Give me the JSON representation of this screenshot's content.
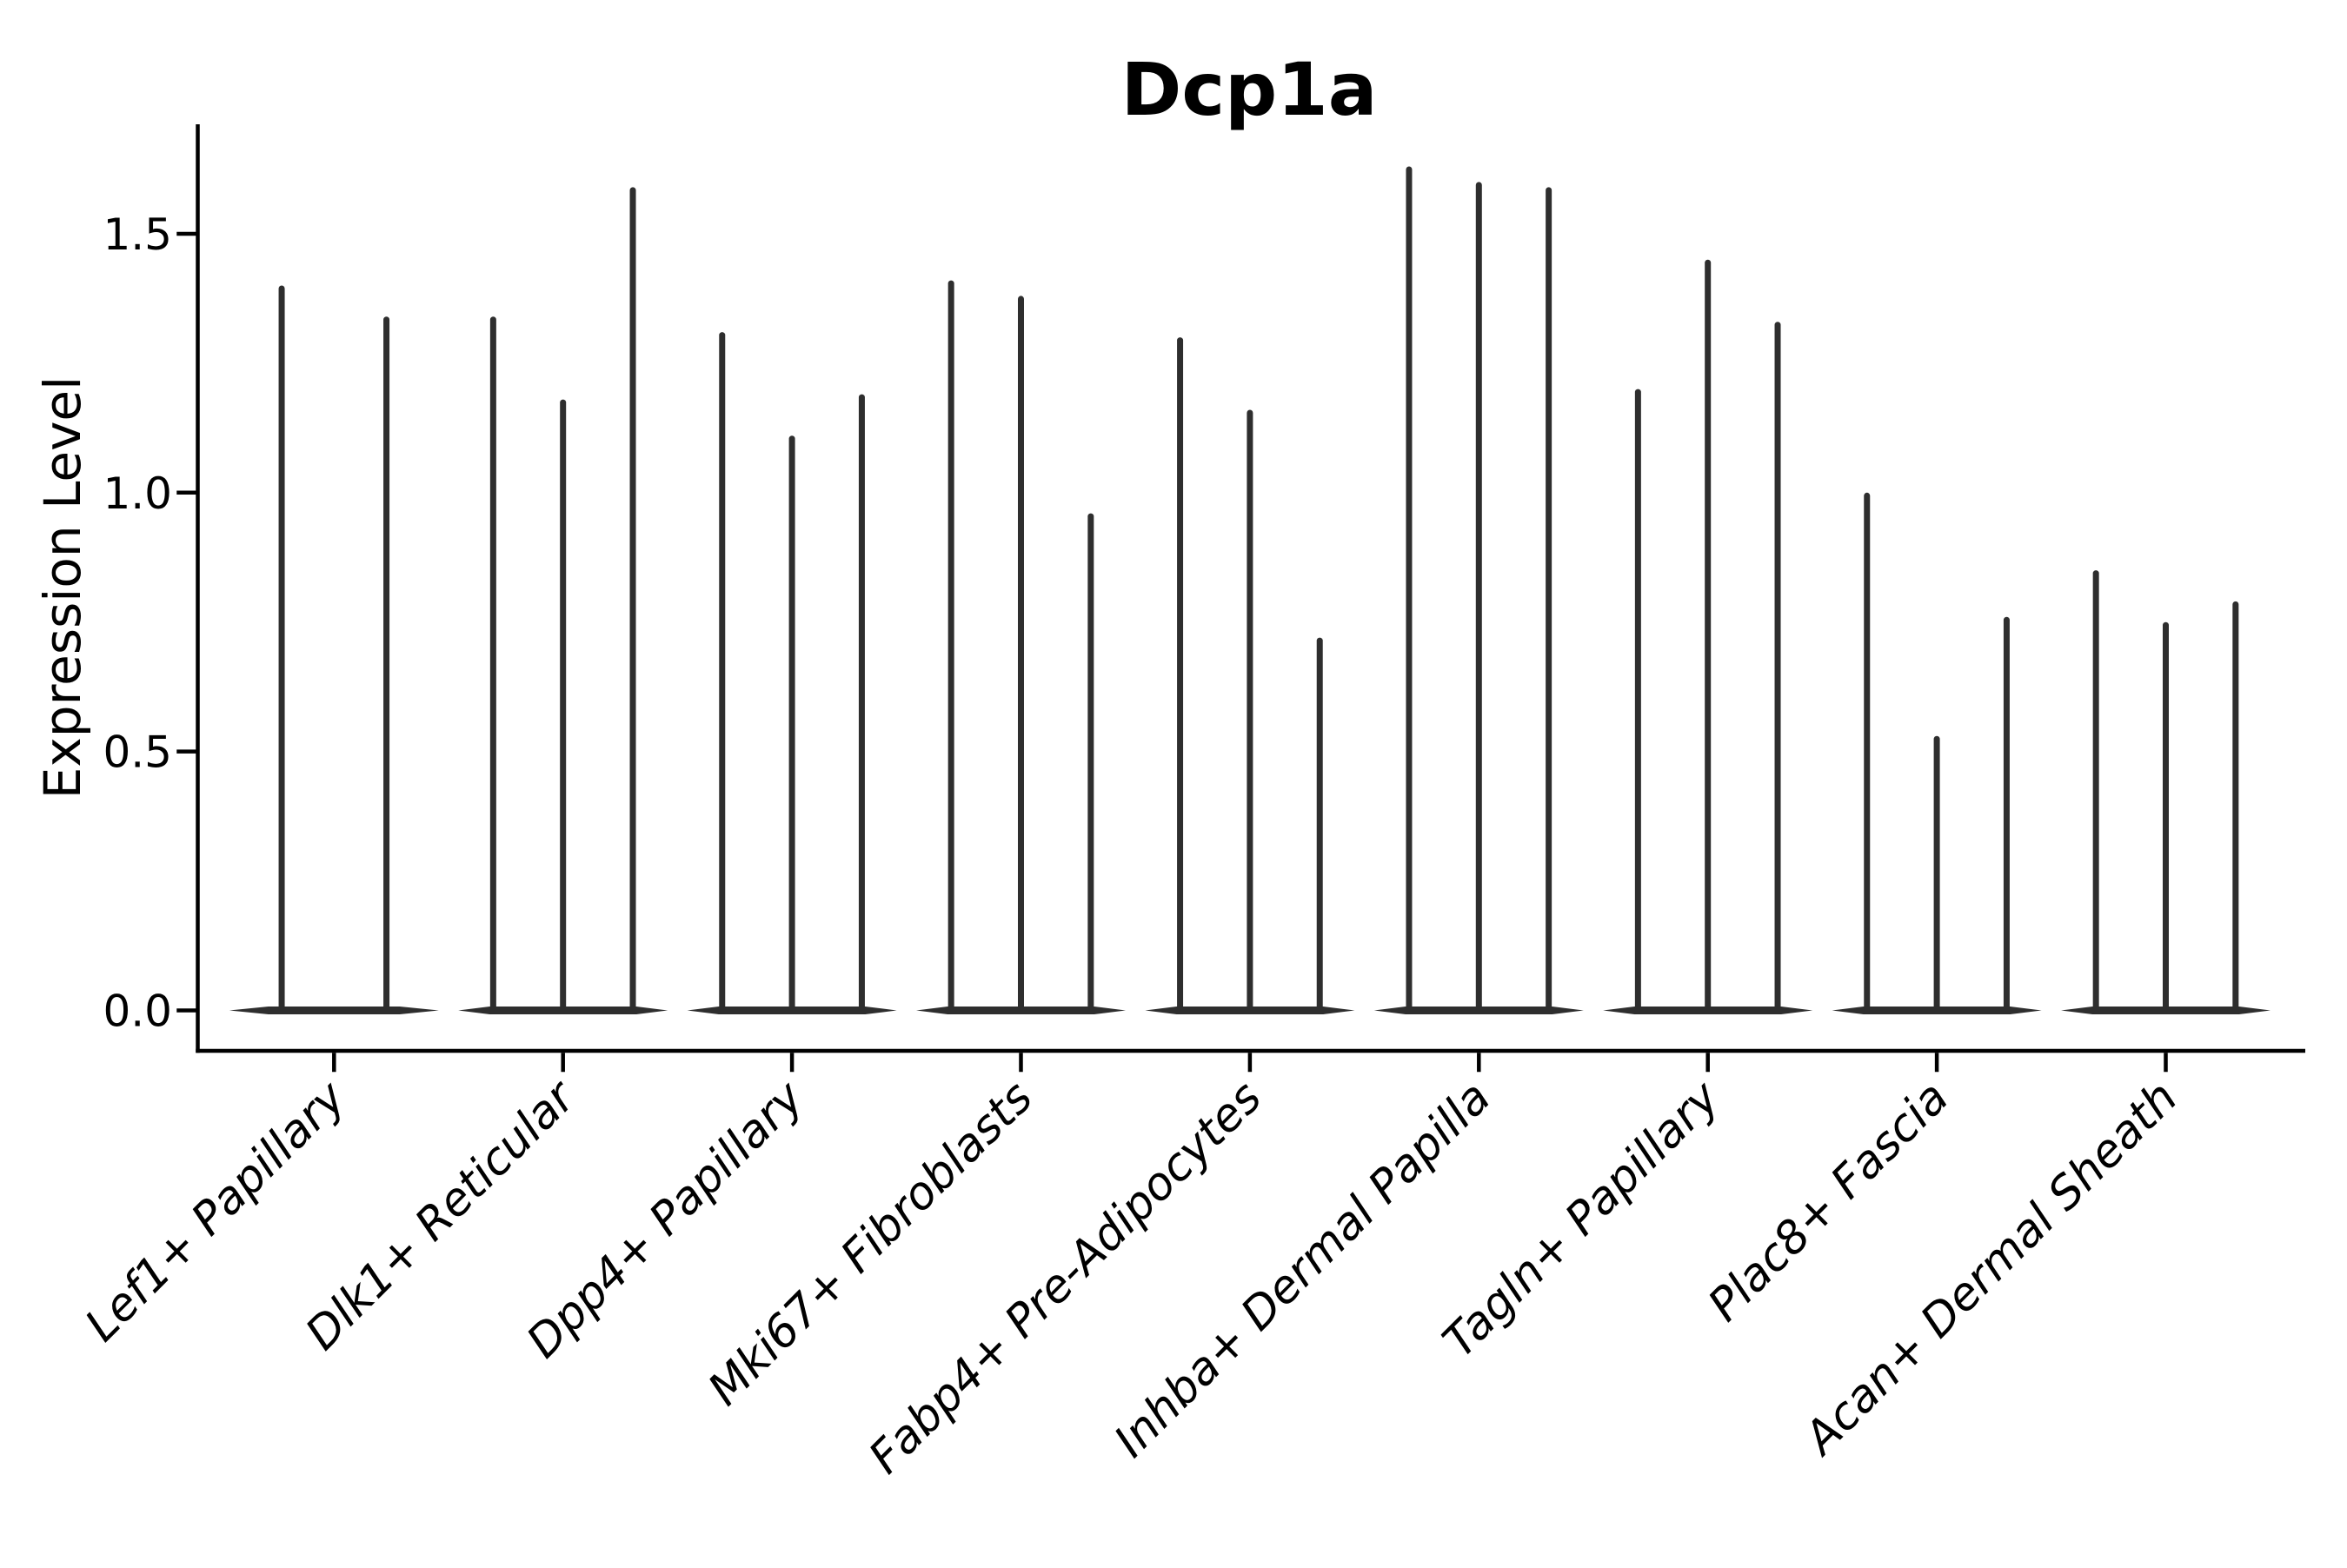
{
  "chart_data": {
    "type": "violin",
    "title": "Dcp1a",
    "xlabel": "",
    "ylabel": "Expression Level",
    "ytick_labels": [
      "0.0",
      "0.5",
      "1.0",
      "1.5"
    ],
    "ytick_values": [
      0.0,
      0.5,
      1.0,
      1.5
    ],
    "ylim": [
      -0.08,
      1.71
    ],
    "grid": false,
    "legend": "none",
    "categories": [
      "Lef1+ Papillary",
      "Dlk1+ Reticular",
      "Dpp4+ Papillary",
      "Mki67+ Fibroblasts",
      "Fabp4+ Pre-Adipocytes",
      "Inhba+ Dermal Papilla",
      "Tagln+ Papillary",
      "Plac8+ Fascia",
      "Acan+ Dermal Sheath"
    ],
    "violin_max_values": [
      [
        1.4,
        1.34
      ],
      [
        1.34,
        1.18,
        1.59
      ],
      [
        1.31,
        1.11,
        1.19
      ],
      [
        1.41,
        1.38,
        0.96
      ],
      [
        1.3,
        1.16,
        0.72
      ],
      [
        1.63,
        1.6,
        1.59
      ],
      [
        1.2,
        1.45,
        1.33
      ],
      [
        1.0,
        0.53,
        0.76
      ],
      [
        0.85,
        0.75,
        0.79
      ]
    ],
    "violin_baseline_value": 0.0,
    "violin_color": "#2e2e2e",
    "axis_color": "#000000",
    "text_color": "#000000",
    "background_color": "#ffffff"
  }
}
